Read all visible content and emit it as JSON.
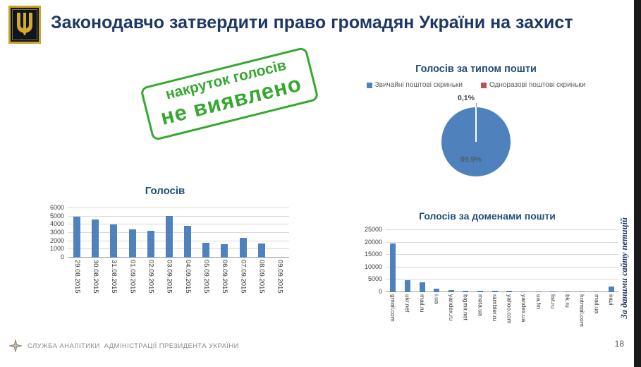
{
  "slide": {
    "title": "Законодавчо затвердити право громадян України на захист",
    "page_number": "18",
    "side_caption": "За даними сайту петицій",
    "footer_text": "СЛУЖБА АНАЛІТИКИ  АДМІНІСТРАЦІЇ ПРЕЗИДЕНТА УКРАЇНИ",
    "title_color": "#1F3864"
  },
  "stamp": {
    "line1": "накруток голосів",
    "line2": "не виявлено",
    "color": "#35A82F"
  },
  "chart_data": [
    {
      "type": "pie",
      "title": "Голосів за типом пошти",
      "labels": [
        "Звичайні поштові скриньки",
        "Одноразові поштові скриньки"
      ],
      "values": [
        99.9,
        0.1
      ],
      "value_labels": {
        "big": "99,9%",
        "small": "0,1%"
      },
      "colors": [
        "#4F81BD",
        "#C0504D"
      ],
      "legend_position": "top"
    },
    {
      "type": "bar",
      "title": "Голосів",
      "categories": [
        "29.08.2015",
        "30.08.2015",
        "31.08.2015",
        "01.09.2015",
        "02.09.2015",
        "03.09.2015",
        "04.09.2015",
        "05.09.2015",
        "06.09.2015",
        "07.09.2015",
        "08.09.2015",
        "09.09.2015"
      ],
      "values": [
        5000,
        4600,
        4000,
        3400,
        3300,
        5100,
        3900,
        1800,
        1600,
        2400,
        1700,
        0
      ],
      "ylim": [
        0,
        6000
      ],
      "ytick_step": 1000,
      "color": "#4F81BD",
      "grid": true,
      "xlabel": "",
      "ylabel": ""
    },
    {
      "type": "bar",
      "title": "Голосів за доменами пошти",
      "categories": [
        "gmail.com",
        "ukr.net",
        "mail.ru",
        "i.ua",
        "yandex.ru",
        "bigmir.net",
        "meta.ua",
        "rambler.ru",
        "yahoo.com",
        "yandex.ua",
        "ua.fm",
        "list.ru",
        "bk.ru",
        "hotmail.com",
        "mail.ua",
        "інші"
      ],
      "values": [
        19500,
        4800,
        4000,
        1300,
        800,
        700,
        600,
        500,
        450,
        400,
        350,
        300,
        250,
        250,
        200,
        2200
      ],
      "ylim": [
        0,
        25000
      ],
      "ytick_step": 5000,
      "color": "#4F81BD",
      "grid": true,
      "xlabel": "",
      "ylabel": ""
    }
  ]
}
